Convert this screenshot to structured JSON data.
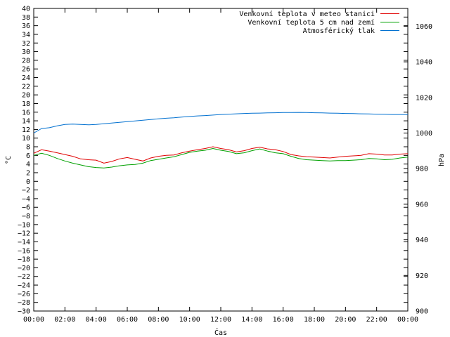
{
  "chart_data": {
    "type": "line",
    "xlabel": "Čas",
    "ylabel": "°C",
    "y2label": "hPa",
    "x_ticks": [
      "00:00",
      "02:00",
      "04:00",
      "06:00",
      "08:00",
      "10:00",
      "12:00",
      "14:00",
      "16:00",
      "18:00",
      "20:00",
      "22:00",
      "00:00"
    ],
    "xlim_hours": [
      0,
      24
    ],
    "ylim": [
      -30,
      40
    ],
    "y_tick_step": 2,
    "y2lim": [
      900,
      1070
    ],
    "y2_ticks": [
      900,
      920,
      940,
      960,
      980,
      1000,
      1020,
      1040,
      1060
    ],
    "grid": false,
    "legend_position": "top-right",
    "x_hours": [
      0,
      0.5,
      1,
      1.5,
      2,
      2.5,
      3,
      3.5,
      4,
      4.5,
      5,
      5.5,
      6,
      6.5,
      7,
      7.5,
      8,
      8.5,
      9,
      9.5,
      10,
      10.5,
      11,
      11.5,
      12,
      12.5,
      13,
      13.5,
      14,
      14.5,
      15,
      15.5,
      16,
      16.5,
      17,
      17.5,
      18,
      18.5,
      19,
      19.5,
      20,
      20.5,
      21,
      21.5,
      22,
      22.5,
      23,
      23.5,
      24
    ],
    "series": [
      {
        "name": "Venkovní teplota v meteo stanici",
        "color": "#e00000",
        "axis": "left",
        "values": [
          6.5,
          7.3,
          7.0,
          6.6,
          6.2,
          5.8,
          5.2,
          5.0,
          4.9,
          4.2,
          4.6,
          5.2,
          5.5,
          5.1,
          4.7,
          5.4,
          5.8,
          6.0,
          6.1,
          6.6,
          7.0,
          7.3,
          7.6,
          8.0,
          7.6,
          7.3,
          6.8,
          7.1,
          7.6,
          7.9,
          7.5,
          7.3,
          6.9,
          6.2,
          5.9,
          5.7,
          5.6,
          5.5,
          5.4,
          5.6,
          5.8,
          5.9,
          6.0,
          6.4,
          6.3,
          6.1,
          6.1,
          6.3,
          6.4
        ]
      },
      {
        "name": "Venkovní teplota 5 cm nad zemí",
        "color": "#00a000",
        "axis": "left",
        "values": [
          6.0,
          6.5,
          6.0,
          5.3,
          4.7,
          4.2,
          3.8,
          3.4,
          3.2,
          3.1,
          3.3,
          3.6,
          3.8,
          3.9,
          4.2,
          4.8,
          5.1,
          5.4,
          5.7,
          6.2,
          6.7,
          7.0,
          7.2,
          7.6,
          7.2,
          6.9,
          6.4,
          6.6,
          7.1,
          7.5,
          7.0,
          6.6,
          6.4,
          5.8,
          5.3,
          5.0,
          4.9,
          4.8,
          4.7,
          4.8,
          4.8,
          4.9,
          5.0,
          5.3,
          5.2,
          5.0,
          5.1,
          5.4,
          5.6
        ]
      },
      {
        "name": "Atmosférický tlak",
        "color": "#0070d0",
        "axis": "right",
        "values": [
          1000.0,
          1002.5,
          1003.0,
          1004.0,
          1004.8,
          1005.0,
          1004.8,
          1004.6,
          1004.8,
          1005.2,
          1005.6,
          1006.0,
          1006.4,
          1006.8,
          1007.2,
          1007.6,
          1008.0,
          1008.3,
          1008.6,
          1009.0,
          1009.3,
          1009.6,
          1009.8,
          1010.1,
          1010.4,
          1010.6,
          1010.8,
          1011.0,
          1011.1,
          1011.2,
          1011.3,
          1011.4,
          1011.5,
          1011.5,
          1011.6,
          1011.5,
          1011.4,
          1011.3,
          1011.2,
          1011.1,
          1011.0,
          1010.9,
          1010.8,
          1010.7,
          1010.6,
          1010.5,
          1010.4,
          1010.4,
          1010.3
        ]
      }
    ]
  }
}
